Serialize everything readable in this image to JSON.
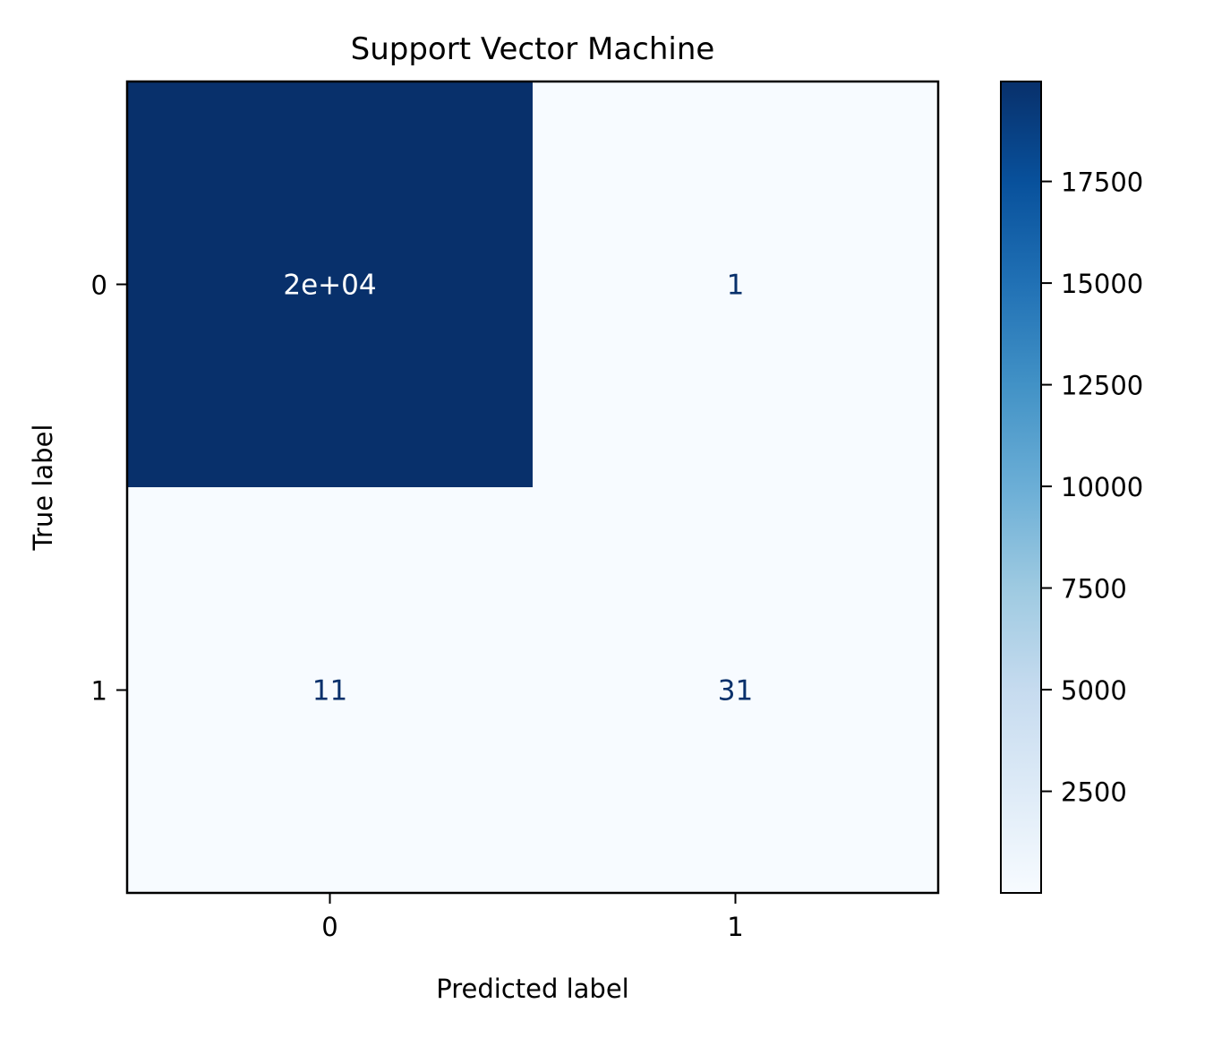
{
  "chart_data": {
    "type": "heatmap",
    "title": "Support Vector Machine",
    "xlabel": "Predicted label",
    "ylabel": "True label",
    "x_tick_labels": [
      "0",
      "1"
    ],
    "y_tick_labels": [
      "0",
      "1"
    ],
    "matrix": [
      [
        19958,
        1
      ],
      [
        11,
        31
      ]
    ],
    "cell_labels": [
      [
        "2e+04",
        "1"
      ],
      [
        "11",
        "31"
      ]
    ],
    "colormap": "Blues",
    "colorbar": {
      "range": [
        1,
        19958
      ],
      "ticks": [
        2500,
        5000,
        7500,
        10000,
        12500,
        15000,
        17500
      ],
      "tick_labels": [
        "2500",
        "5000",
        "7500",
        "10000",
        "12500",
        "15000",
        "17500"
      ]
    },
    "colors": {
      "low": "#f7fbff",
      "high": "#08306b",
      "label_on_dark": "#ffffff",
      "label_on_light": "#08306b"
    }
  }
}
